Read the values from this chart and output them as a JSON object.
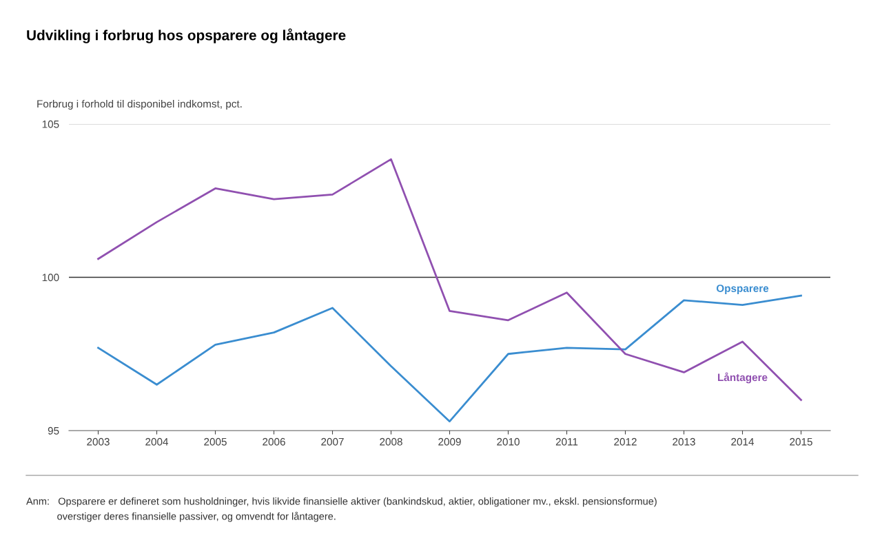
{
  "chart_data": {
    "type": "line",
    "title": "Udvikling i forbrug hos opsparere og låntagere",
    "ylabel": "Forbrug i forhold til disponibel indkomst, pct.",
    "categories": [
      "2003",
      "2004",
      "2005",
      "2006",
      "2007",
      "2008",
      "2009",
      "2010",
      "2011",
      "2012",
      "2013",
      "2014",
      "2015"
    ],
    "series": [
      {
        "name": "Opsparere",
        "color": "#3a8dd0",
        "values": [
          97.7,
          96.5,
          97.8,
          98.2,
          99.0,
          97.1,
          95.3,
          97.5,
          97.7,
          97.65,
          99.25,
          99.1,
          99.4
        ]
      },
      {
        "name": "Låntagere",
        "color": "#9050b0",
        "values": [
          100.6,
          101.8,
          102.9,
          102.55,
          102.7,
          103.85,
          98.9,
          98.6,
          99.5,
          97.5,
          96.9,
          97.9,
          96.0
        ]
      }
    ],
    "ylim": [
      95,
      105
    ],
    "yticks": [
      95,
      100,
      105
    ],
    "marker": "none",
    "line_style": "solid",
    "legend": false,
    "ref_lines": [
      {
        "axis": "y",
        "value": 105,
        "color": "#d0d0d0"
      },
      {
        "axis": "y",
        "value": 100,
        "color": "#333333"
      }
    ],
    "annotations": [
      "Anm:   Opsparere er defineret som husholdninger, hvis likvide finansielle aktiver (bankindskud, aktier, obligationer mv., ekskl. pensionsformue)\n           overstiger deres finansielle passiver, og omvendt for låntagere."
    ]
  }
}
